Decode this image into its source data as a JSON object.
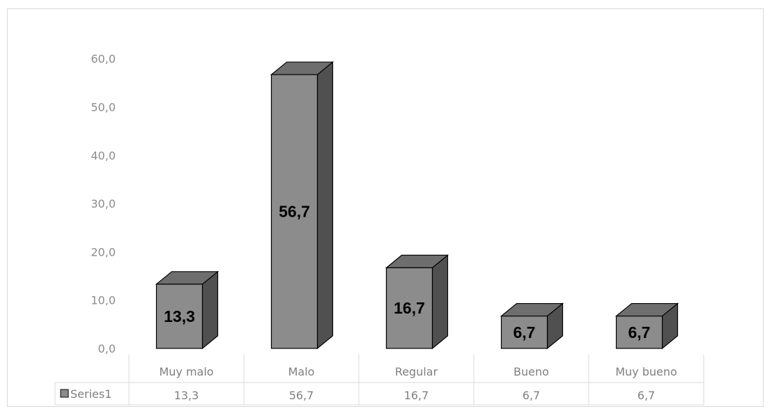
{
  "chart_data": {
    "type": "bar",
    "style": "3d-column-with-data-table",
    "title": "",
    "xlabel": "",
    "ylabel": "",
    "categories": [
      "Muy malo",
      "Malo",
      "Regular",
      "Bueno",
      "Muy bueno"
    ],
    "series": [
      {
        "name": "Series1",
        "values": [
          13.3,
          56.7,
          16.7,
          6.7,
          6.7
        ],
        "color": "#7f7f7f"
      }
    ],
    "data_labels": [
      "13,3",
      "56,7",
      "16,7",
      "6,7",
      "6,7"
    ],
    "ylim": [
      0,
      60
    ],
    "yticks": [
      0,
      10,
      20,
      30,
      40,
      50,
      60
    ],
    "ytick_labels": [
      "0,0",
      "10,0",
      "20,0",
      "30,0",
      "40,0",
      "50,0",
      "60,0"
    ],
    "gridlines": false,
    "legend": "data-table-key",
    "data_table": {
      "series_label": "Series1",
      "cells": [
        "13,3",
        "56,7",
        "16,7",
        "6,7",
        "6,7"
      ]
    },
    "colors": {
      "front": "#8c8c8c",
      "top": "#6e6e6e",
      "side": "#505050",
      "outline": "#000000"
    }
  }
}
